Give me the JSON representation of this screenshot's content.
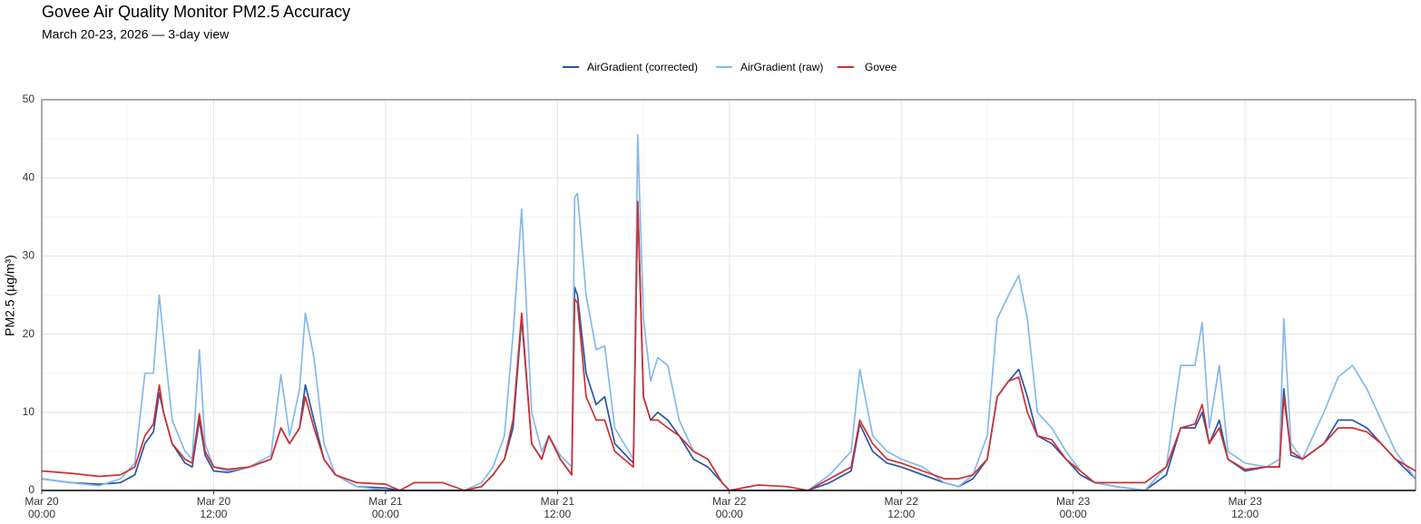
{
  "chart_data": {
    "type": "line",
    "title": "Govee Air Quality Monitor PM2.5 Accuracy",
    "subtitle": "March 20-23, 2026 — 3-day view",
    "y_label": "PM2.5 (µg/m³)",
    "x": [
      "Mar 20 00:00",
      "Mar 20 02:00",
      "Mar 20 04:00",
      "Mar 20 05:30",
      "Mar 20 06:30",
      "Mar 20 07:12",
      "Mar 20 07:48",
      "Mar 20 08:12",
      "Mar 20 08:30",
      "Mar 20 09:06",
      "Mar 20 10:00",
      "Mar 20 10:30",
      "Mar 20 11:00",
      "Mar 20 11:24",
      "Mar 20 12:00",
      "Mar 20 13:00",
      "Mar 20 14:30",
      "Mar 20 16:00",
      "Mar 20 16:42",
      "Mar 20 17:18",
      "Mar 20 18:00",
      "Mar 20 18:24",
      "Mar 20 19:00",
      "Mar 20 19:42",
      "Mar 20 20:30",
      "Mar 20 22:00",
      "Mar 21 00:00",
      "Mar 21 01:00",
      "Mar 21 02:00",
      "Mar 21 04:00",
      "Mar 21 05:30",
      "Mar 21 06:42",
      "Mar 21 07:30",
      "Mar 21 08:18",
      "Mar 21 08:54",
      "Mar 21 09:30",
      "Mar 21 10:12",
      "Mar 21 10:54",
      "Mar 21 11:24",
      "Mar 21 12:12",
      "Mar 21 13:00",
      "Mar 21 13:12",
      "Mar 21 13:24",
      "Mar 21 14:00",
      "Mar 21 14:42",
      "Mar 21 15:18",
      "Mar 21 16:00",
      "Mar 21 17:18",
      "Mar 21 17:36",
      "Mar 21 18:00",
      "Mar 21 18:30",
      "Mar 21 19:00",
      "Mar 21 19:42",
      "Mar 21 20:30",
      "Mar 21 21:30",
      "Mar 21 22:30",
      "Mar 21 23:30",
      "Mar 22 00:00",
      "Mar 22 02:00",
      "Mar 22 04:00",
      "Mar 22 05:30",
      "Mar 22 07:00",
      "Mar 22 08:30",
      "Mar 22 09:06",
      "Mar 22 10:00",
      "Mar 22 11:00",
      "Mar 22 12:00",
      "Mar 22 13:30",
      "Mar 22 15:00",
      "Mar 22 16:00",
      "Mar 22 17:00",
      "Mar 22 18:00",
      "Mar 22 18:42",
      "Mar 22 19:30",
      "Mar 22 20:12",
      "Mar 22 20:48",
      "Mar 22 21:30",
      "Mar 22 22:30",
      "Mar 22 23:30",
      "Mar 23 00:30",
      "Mar 23 01:30",
      "Mar 23 03:00",
      "Mar 23 05:00",
      "Mar 23 06:30",
      "Mar 23 07:30",
      "Mar 23 08:30",
      "Mar 23 09:00",
      "Mar 23 09:30",
      "Mar 23 10:12",
      "Mar 23 10:48",
      "Mar 23 12:00",
      "Mar 23 13:30",
      "Mar 23 14:24",
      "Mar 23 14:42",
      "Mar 23 15:12",
      "Mar 23 16:00",
      "Mar 23 17:30",
      "Mar 23 18:30",
      "Mar 23 19:30",
      "Mar 23 20:30",
      "Mar 23 21:30",
      "Mar 23 22:30",
      "Mar 23 23:54"
    ],
    "series": [
      {
        "name": "AirGradient (corrected)",
        "color": "#2a55a5",
        "values": [
          1.5,
          1,
          0.8,
          1,
          2,
          6,
          7.5,
          12.5,
          10,
          6,
          3.5,
          3,
          9,
          4.5,
          2.5,
          2.3,
          3,
          4,
          8,
          6,
          8,
          13.5,
          9,
          4,
          2,
          0.5,
          0.3,
          0,
          0,
          0,
          0,
          0.5,
          2,
          4,
          8,
          22,
          6,
          4,
          7,
          4,
          2,
          26,
          25,
          15,
          11,
          12,
          6,
          3.5,
          37,
          12,
          9,
          10,
          9,
          7,
          4,
          3,
          1,
          0,
          0,
          0,
          0,
          1,
          2.5,
          8.5,
          5,
          3.5,
          3,
          2,
          1,
          0.5,
          1.5,
          4,
          12,
          14,
          15.5,
          12,
          7,
          6,
          4,
          2,
          1,
          0.5,
          0,
          2,
          8,
          8,
          10,
          6,
          9,
          4,
          2.5,
          3,
          3,
          13,
          4.5,
          4,
          6,
          9,
          9,
          8,
          6,
          4,
          1.5
        ]
      },
      {
        "name": "AirGradient (raw)",
        "color": "#85b9ea",
        "values": [
          1.5,
          1,
          0.6,
          1.5,
          3.5,
          15,
          15,
          25,
          19.5,
          9,
          5,
          4,
          18,
          6,
          3,
          2.5,
          3,
          4.5,
          14.8,
          7,
          13,
          22.7,
          17,
          6,
          2,
          0.5,
          0,
          0,
          0,
          0,
          0,
          1,
          3,
          7,
          20,
          36,
          10,
          5,
          7,
          4.5,
          3,
          37.5,
          38,
          25,
          18,
          18.5,
          8,
          4,
          45.5,
          22,
          14,
          17,
          16,
          9,
          5,
          4,
          1,
          0,
          0,
          0,
          0,
          2,
          5,
          15.5,
          7,
          5,
          4,
          3,
          1,
          0.5,
          2,
          7,
          22,
          25,
          27.5,
          22,
          10,
          8,
          5,
          2.5,
          1,
          0.5,
          0,
          3,
          16,
          16,
          21.5,
          8,
          16,
          5,
          3.5,
          3,
          4,
          22,
          6,
          4,
          10,
          14.5,
          16,
          13,
          9,
          5,
          1.5
        ]
      },
      {
        "name": "Govee",
        "color": "#d03030",
        "values": [
          2.5,
          2.2,
          1.8,
          2,
          3,
          7,
          8.5,
          13.5,
          10,
          6,
          4,
          3.5,
          9.8,
          5,
          3,
          2.7,
          3,
          4,
          8,
          6,
          8,
          12,
          8,
          4,
          2,
          1,
          0.8,
          0,
          1,
          1,
          0,
          0.5,
          2,
          4,
          9,
          22.7,
          6,
          4,
          7,
          4,
          2,
          24.5,
          24,
          12,
          9,
          9,
          5,
          3,
          37,
          12,
          9,
          9,
          8,
          7,
          5,
          4,
          1,
          0,
          0.7,
          0.5,
          0,
          1.5,
          3,
          9,
          6,
          4,
          3.5,
          2.5,
          1.5,
          1.5,
          2,
          4,
          12,
          14,
          14.5,
          10,
          7,
          6.5,
          4,
          2.5,
          1,
          1,
          1,
          3,
          8,
          8.5,
          11,
          6,
          8,
          4,
          2.7,
          3,
          3,
          12,
          5,
          4,
          6,
          8,
          8,
          7.5,
          6,
          4,
          2.5
        ]
      }
    ],
    "xlim": [
      "Mar 20 00:00",
      "Mar 23 23:54"
    ],
    "xticks": [
      {
        "value": "Mar 20 00:00",
        "label": [
          "Mar 20",
          "00:00"
        ]
      },
      {
        "value": "Mar 20 12:00",
        "label": [
          "Mar 20",
          "12:00"
        ]
      },
      {
        "value": "Mar 21 00:00",
        "label": [
          "Mar 21",
          "00:00"
        ]
      },
      {
        "value": "Mar 21 12:00",
        "label": [
          "Mar 21",
          "12:00"
        ]
      },
      {
        "value": "Mar 22 00:00",
        "label": [
          "Mar 22",
          "00:00"
        ]
      },
      {
        "value": "Mar 22 12:00",
        "label": [
          "Mar 22",
          "12:00"
        ]
      },
      {
        "value": "Mar 23 00:00",
        "label": [
          "Mar 23",
          "00:00"
        ]
      },
      {
        "value": "Mar 23 12:00",
        "label": [
          "Mar 23",
          "12:00"
        ]
      }
    ],
    "ylim": [
      0,
      50
    ],
    "yticks": [
      0,
      10,
      20,
      30,
      40,
      50
    ],
    "grid": true,
    "legend": "top"
  }
}
